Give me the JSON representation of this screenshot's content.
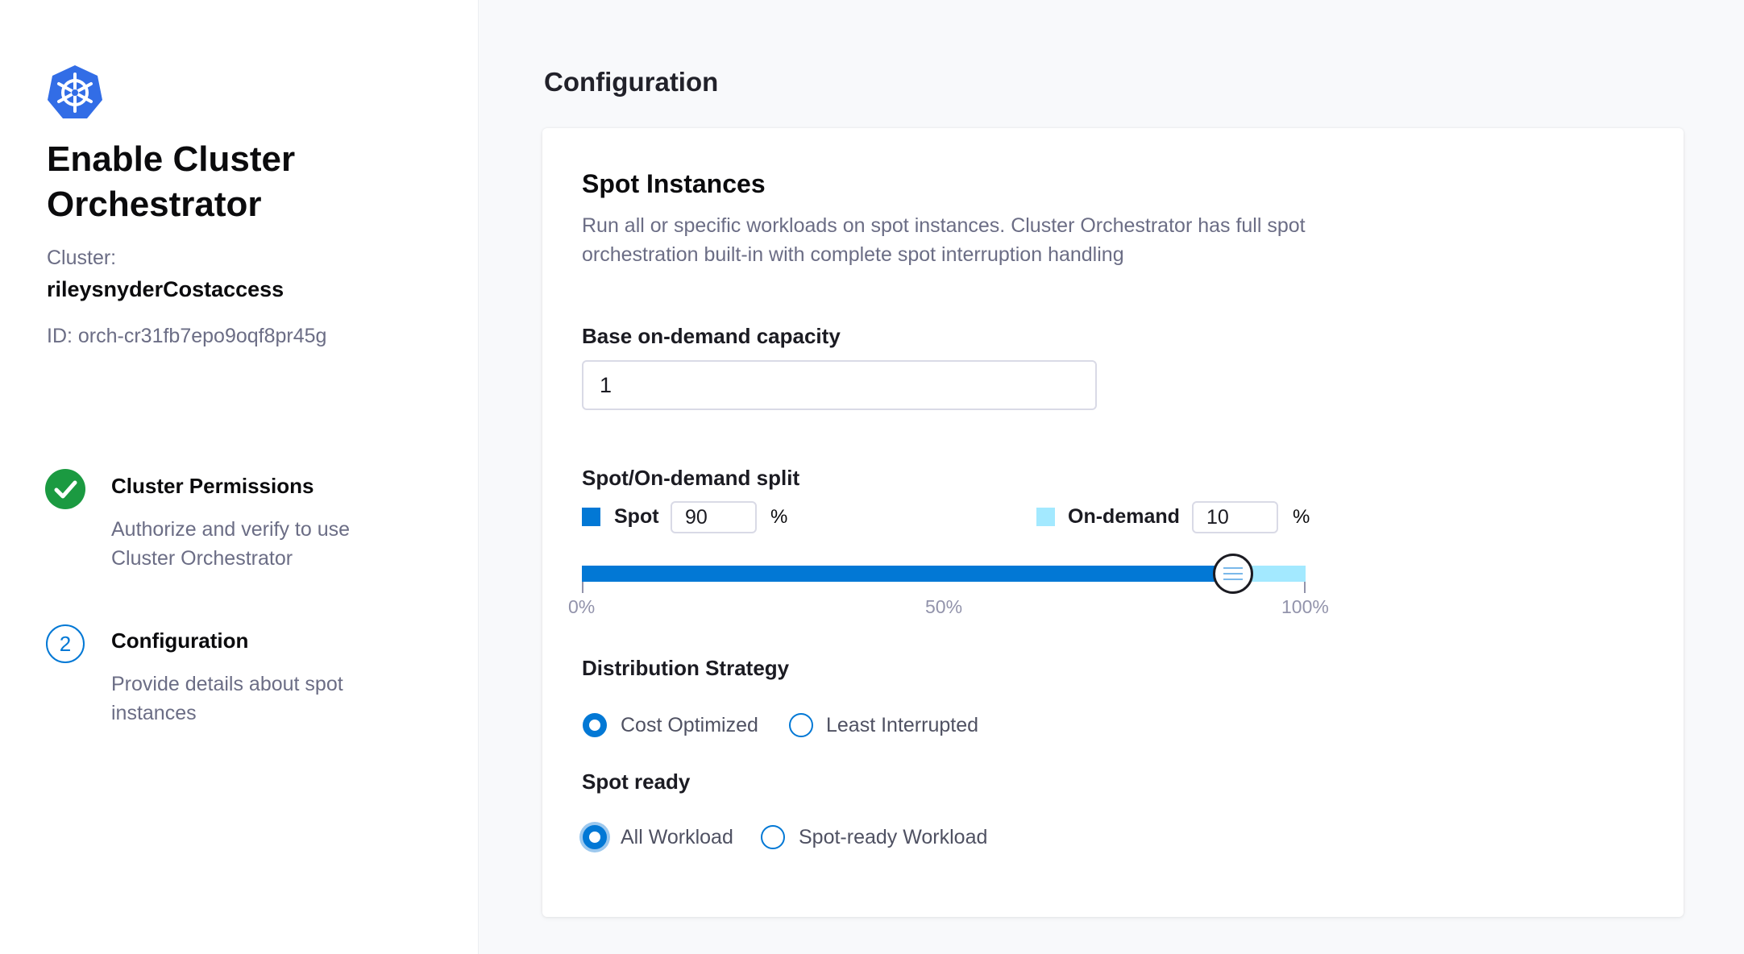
{
  "sidebar": {
    "logo": "kubernetes-icon",
    "title": "Enable Cluster Orchestrator",
    "cluster_label": "Cluster:",
    "cluster_name": "rileysnyderCostaccess",
    "id": "ID: orch-cr31fb7epo9oqf8pr45g",
    "steps": [
      {
        "title": "Cluster Permissions",
        "desc": "Authorize and verify to use Cluster Orchestrator",
        "status": "complete"
      },
      {
        "number": "2",
        "title": "Configuration",
        "desc": "Provide details about spot instances",
        "status": "current"
      }
    ]
  },
  "main": {
    "heading": "Configuration",
    "card": {
      "title": "Spot Instances",
      "desc": "Run all or specific workloads on spot instances. Cluster Orchestrator has full spot orchestration built-in with complete spot interruption handling",
      "base_label": "Base on-demand capacity",
      "base_value": "1",
      "split_label": "Spot/On-demand split",
      "spot_label": "Spot",
      "spot_value": "90",
      "spot_unit": "%",
      "ondemand_label": "On-demand",
      "ondemand_value": "10",
      "ondemand_unit": "%",
      "slider_value_percent": 90,
      "ticks": [
        "0%",
        "50%",
        "100%"
      ],
      "distribution_label": "Distribution Strategy",
      "distribution_options": [
        "Cost Optimized",
        "Least Interrupted"
      ],
      "distribution_selected": "Cost Optimized",
      "spot_ready_label": "Spot ready",
      "spot_ready_options": [
        "All Workload",
        "Spot-ready Workload"
      ],
      "spot_ready_selected": "All Workload"
    }
  },
  "colors": {
    "spot": "#0278d5",
    "ondemand": "#a3e9ff",
    "success": "#1b9a41",
    "logo": "#326de6"
  }
}
